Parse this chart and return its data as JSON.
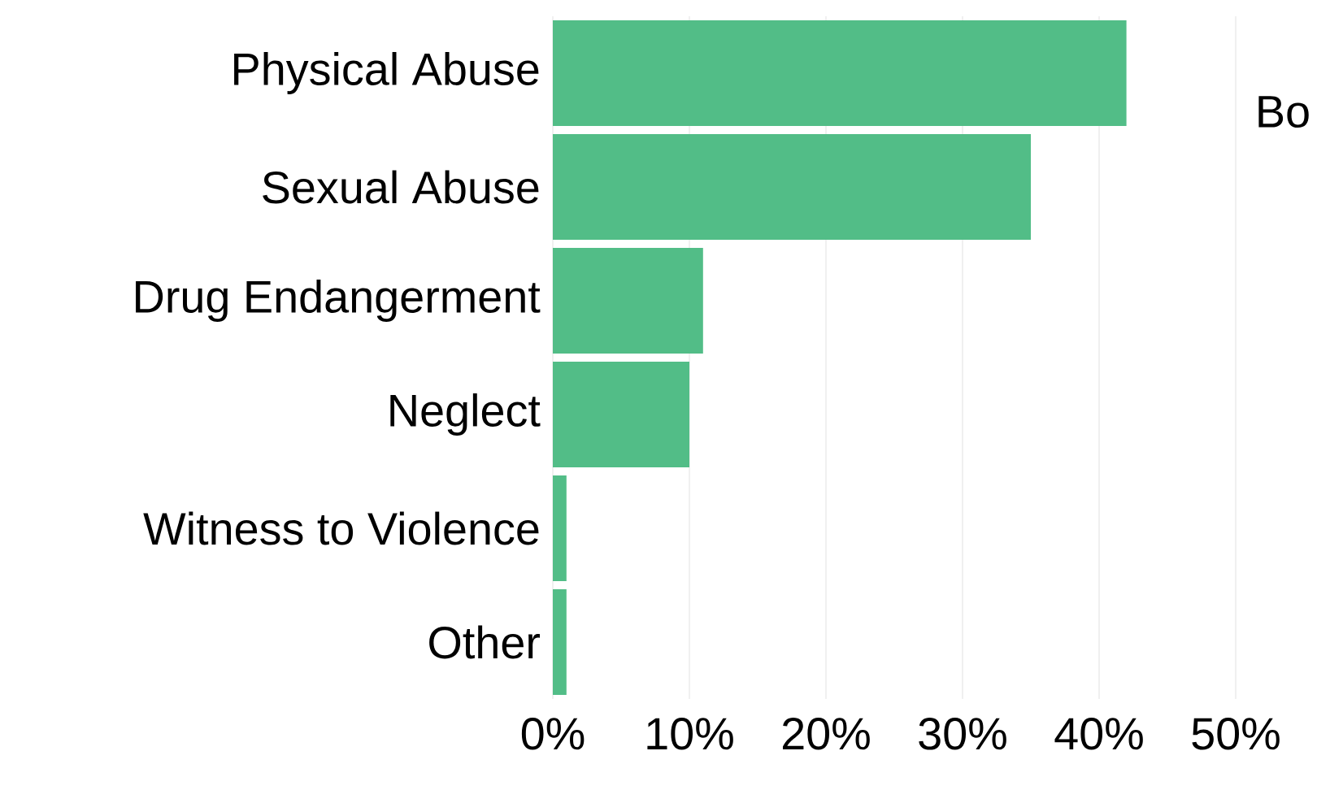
{
  "chart_data": {
    "type": "bar",
    "orientation": "horizontal",
    "categories": [
      "Physical Abuse",
      "Sexual Abuse",
      "Drug Endangerment",
      "Neglect",
      "Witness to Violence",
      "Other"
    ],
    "values": [
      42,
      35,
      11,
      10,
      1,
      1
    ],
    "color": "#52bd87",
    "xlim": [
      0,
      50
    ],
    "xticks": [
      {
        "value": 0,
        "label": "0%"
      },
      {
        "value": 10,
        "label": "10%"
      },
      {
        "value": 20,
        "label": "20%"
      },
      {
        "value": 30,
        "label": "30%"
      },
      {
        "value": 40,
        "label": "40%"
      },
      {
        "value": 50,
        "label": "50%"
      }
    ],
    "grid": "x",
    "annotations": [
      "Bo"
    ]
  }
}
